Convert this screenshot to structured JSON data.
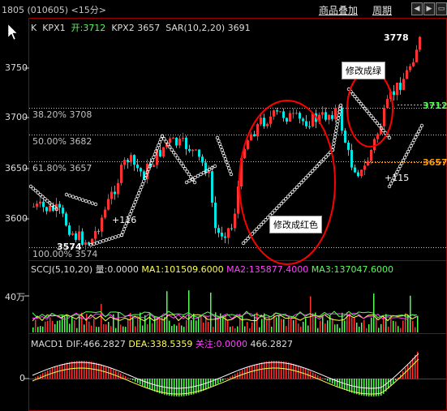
{
  "header": {
    "title": "1805 (010605) <15分>",
    "btn_overlay": "商品叠加",
    "btn_period": "周期"
  },
  "main_panel": {
    "legend": {
      "k": "K",
      "kpx1_label": "KPX1",
      "open_label": "开:3712",
      "kpx2_label": "KPX2",
      "kpx2_value": "3657",
      "sar_label": "SAR(10,2,20)",
      "sar_value": "3691"
    },
    "y_ticks": [
      "3750",
      "3700",
      "3650",
      "3600"
    ],
    "fib_levels": [
      {
        "label": "38.20% 3708",
        "price": 3708
      },
      {
        "label": "50.00% 3682",
        "price": 3682
      },
      {
        "label": "61.80% 3657",
        "price": 3657
      },
      {
        "label": "100.00% 3574",
        "price": 3574
      }
    ],
    "high_label": "3778",
    "low_label": "3574",
    "marker_left": "+116",
    "marker_right": "+115",
    "right_tag_green": "3712",
    "right_tag_orange": "3657",
    "callout_green": "修改成绿",
    "callout_red": "修改成红色"
  },
  "volume_panel": {
    "legend": {
      "name": "SCCJ(5,10,20)",
      "vol": "量:0.0000",
      "ma1": "MA1:101509.6000",
      "ma2": "MA2:135877.4000",
      "ma3": "MA3:137047.6000"
    },
    "y_tick": "40万"
  },
  "macd_panel": {
    "legend": {
      "name": "MACD1",
      "dif": "DIF:466.2827",
      "dea": "DEA:338.5359",
      "focus": "关注:0.0000",
      "extra": "466.2827"
    },
    "y_tick": "0"
  },
  "colors": {
    "up": "#ff3232",
    "down": "#00e6e6",
    "fib": "#c0c0c0",
    "green": "#54ff54",
    "orange": "#ff9a00",
    "magenta": "#ff40ff",
    "yellow": "#ffff50"
  }
}
